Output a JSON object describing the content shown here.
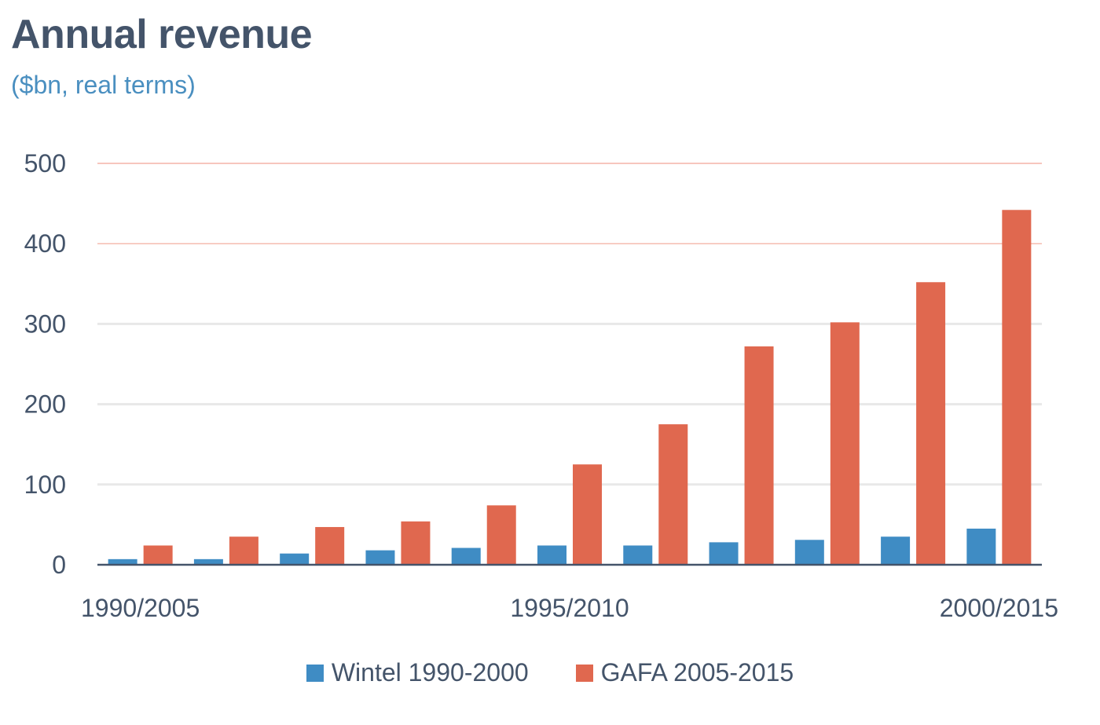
{
  "chart_data": {
    "type": "bar",
    "title": "Annual revenue",
    "subtitle": "($bn, real terms)",
    "xlabel": "",
    "ylabel": "",
    "ylim": [
      0,
      500
    ],
    "yticks": [
      "0",
      "100",
      "200",
      "300",
      "400",
      "500"
    ],
    "categories": [
      "1990/2005",
      "",
      "",
      "",
      "",
      "1995/2010",
      "",
      "",
      "",
      "",
      "2000/2015"
    ],
    "series": [
      {
        "name": "Wintel 1990-2000",
        "color": "#3f8cc4",
        "values": [
          7,
          7,
          14,
          18,
          21,
          24,
          24,
          28,
          31,
          35,
          45
        ]
      },
      {
        "name": "GAFA 2005-2015",
        "color": "#e0684f",
        "values": [
          24,
          35,
          47,
          54,
          74,
          125,
          175,
          272,
          302,
          352,
          442
        ]
      }
    ],
    "grid": true,
    "legend": "bottom"
  }
}
